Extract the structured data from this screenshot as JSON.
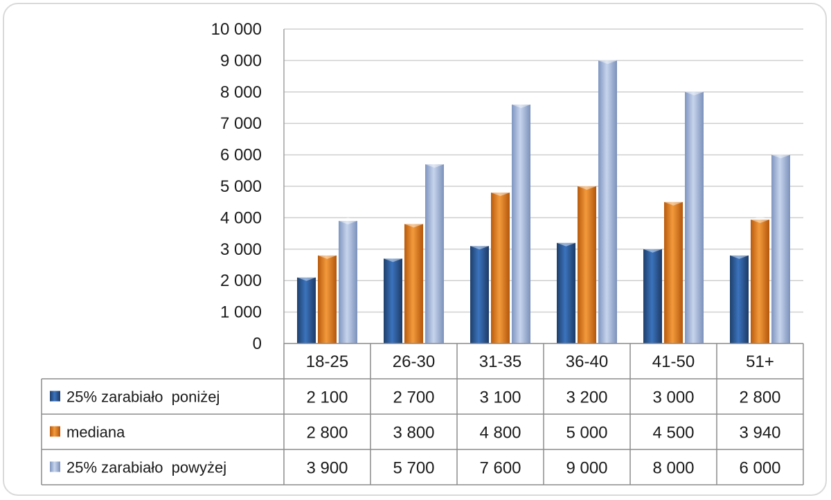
{
  "chart_data": {
    "type": "bar",
    "title": "",
    "xlabel": "",
    "ylabel": "",
    "ylim": [
      0,
      10000
    ],
    "y_ticks": [
      "0",
      "1 000",
      "2 000",
      "3 000",
      "4 000",
      "5 000",
      "6 000",
      "7 000",
      "8 000",
      "9 000",
      "10 000"
    ],
    "grid": true,
    "legend": "data-table",
    "categories": [
      "18-25",
      "26-30",
      "31-35",
      "36-40",
      "41-50",
      "51+"
    ],
    "series": [
      {
        "name": "25% zarabiało  poniżej",
        "color": "#2f5f9e",
        "values": [
          2100,
          2700,
          3100,
          3200,
          3000,
          2800
        ],
        "labels": [
          "2 100",
          "2 700",
          "3 100",
          "3 200",
          "3 000",
          "2 800"
        ]
      },
      {
        "name": "mediana",
        "color": "#e47a1c",
        "values": [
          2800,
          3800,
          4800,
          5000,
          4500,
          3940
        ],
        "labels": [
          "2 800",
          "3 800",
          "4 800",
          "5 000",
          "4 500",
          "3 940"
        ]
      },
      {
        "name": "25% zarabiało  powyżej",
        "color": "#9fb3d6",
        "values": [
          3900,
          5700,
          7600,
          9000,
          8000,
          6000
        ],
        "labels": [
          "3 900",
          "5 700",
          "7 600",
          "9 000",
          "8 000",
          "6 000"
        ]
      }
    ]
  }
}
